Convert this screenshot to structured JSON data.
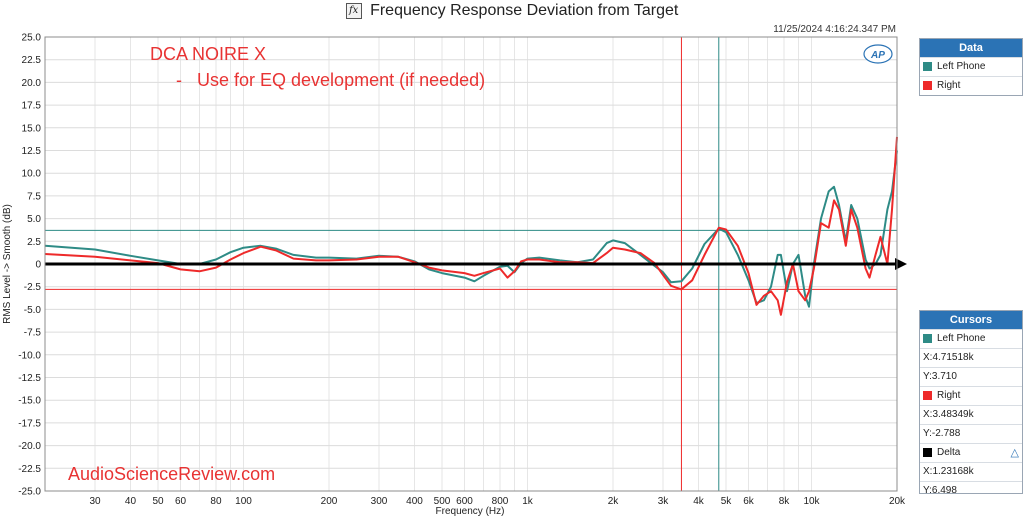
{
  "header": {
    "title": "Frequency Response Deviation from Target",
    "icon": "fx",
    "timestamp": "11/25/2024 4:16:24.347 PM"
  },
  "annotations": {
    "product": "DCA NOIRE X",
    "note": "-   Use for EQ development (if needed)",
    "watermark": "AudioScienceReview.com",
    "logo": "AP"
  },
  "data_panel": {
    "title": "Data",
    "items": [
      {
        "label": "Left Phone",
        "color": "#2e8b86"
      },
      {
        "label": "Right",
        "color": "#ee2a2a"
      }
    ]
  },
  "cursors_panel": {
    "title": "Cursors",
    "groups": [
      {
        "label": "Left Phone",
        "color": "#2e8b86",
        "x": "X:4.71518k",
        "y": "Y:3.710"
      },
      {
        "label": "Right",
        "color": "#ee2a2a",
        "x": "X:3.48349k",
        "y": "Y:-2.788"
      },
      {
        "label": "Delta",
        "color": "#000000",
        "x": "X:1.23168k",
        "y": "Y:6.498"
      }
    ]
  },
  "chart_data": {
    "type": "line",
    "xlabel": "Frequency (Hz)",
    "ylabel": "RMS Level -> Smooth (dB)",
    "xscale": "log",
    "xlim": [
      20,
      20000
    ],
    "ylim": [
      -25,
      25
    ],
    "grid": true,
    "legend": "right panel",
    "x_ticks": [
      {
        "v": 30,
        "label": "30"
      },
      {
        "v": 40,
        "label": "40"
      },
      {
        "v": 50,
        "label": "50"
      },
      {
        "v": 60,
        "label": "60"
      },
      {
        "v": 80,
        "label": "80"
      },
      {
        "v": 100,
        "label": "100"
      },
      {
        "v": 200,
        "label": "200"
      },
      {
        "v": 300,
        "label": "300"
      },
      {
        "v": 400,
        "label": "400"
      },
      {
        "v": 500,
        "label": "500"
      },
      {
        "v": 600,
        "label": "600"
      },
      {
        "v": 800,
        "label": "800"
      },
      {
        "v": 1000,
        "label": "1k"
      },
      {
        "v": 2000,
        "label": "2k"
      },
      {
        "v": 3000,
        "label": "3k"
      },
      {
        "v": 4000,
        "label": "4k"
      },
      {
        "v": 5000,
        "label": "5k"
      },
      {
        "v": 6000,
        "label": "6k"
      },
      {
        "v": 8000,
        "label": "8k"
      },
      {
        "v": 10000,
        "label": "10k"
      },
      {
        "v": 20000,
        "label": "20k"
      }
    ],
    "y_ticks": [
      {
        "v": 25,
        "label": "25.0"
      },
      {
        "v": 22.5,
        "label": "22.5"
      },
      {
        "v": 20,
        "label": "20.0"
      },
      {
        "v": 17.5,
        "label": "17.5"
      },
      {
        "v": 15,
        "label": "15.0"
      },
      {
        "v": 12.5,
        "label": "12.5"
      },
      {
        "v": 10,
        "label": "10.0"
      },
      {
        "v": 7.5,
        "label": "7.5"
      },
      {
        "v": 5,
        "label": "5.0"
      },
      {
        "v": 2.5,
        "label": "2.5"
      },
      {
        "v": 0,
        "label": "0"
      },
      {
        "v": -2.5,
        "label": "-2.5"
      },
      {
        "v": -5,
        "label": "-5.0"
      },
      {
        "v": -7.5,
        "label": "-7.5"
      },
      {
        "v": -10,
        "label": "-10.0"
      },
      {
        "v": -12.5,
        "label": "-12.5"
      },
      {
        "v": -15,
        "label": "-15.0"
      },
      {
        "v": -17.5,
        "label": "-17.5"
      },
      {
        "v": -20,
        "label": "-20.0"
      },
      {
        "v": -22.5,
        "label": "-22.5"
      },
      {
        "v": -25,
        "label": "-25.0"
      }
    ],
    "series": [
      {
        "name": "Left Phone",
        "color": "#2e8b86",
        "points": [
          [
            20,
            2.0
          ],
          [
            30,
            1.6
          ],
          [
            40,
            0.9
          ],
          [
            50,
            0.4
          ],
          [
            60,
            0.0
          ],
          [
            70,
            0.0
          ],
          [
            80,
            0.5
          ],
          [
            90,
            1.3
          ],
          [
            100,
            1.8
          ],
          [
            115,
            2.0
          ],
          [
            130,
            1.7
          ],
          [
            150,
            1.0
          ],
          [
            180,
            0.7
          ],
          [
            200,
            0.7
          ],
          [
            250,
            0.6
          ],
          [
            300,
            0.9
          ],
          [
            350,
            0.8
          ],
          [
            400,
            0.3
          ],
          [
            450,
            -0.6
          ],
          [
            500,
            -1.0
          ],
          [
            600,
            -1.5
          ],
          [
            650,
            -1.9
          ],
          [
            700,
            -1.3
          ],
          [
            800,
            -0.3
          ],
          [
            850,
            -0.2
          ],
          [
            900,
            -0.9
          ],
          [
            950,
            0.1
          ],
          [
            1000,
            0.6
          ],
          [
            1100,
            0.7
          ],
          [
            1300,
            0.4
          ],
          [
            1500,
            0.2
          ],
          [
            1700,
            0.5
          ],
          [
            1900,
            2.3
          ],
          [
            2000,
            2.6
          ],
          [
            2200,
            2.3
          ],
          [
            2500,
            1.0
          ],
          [
            2800,
            -0.2
          ],
          [
            3000,
            -0.9
          ],
          [
            3200,
            -2.0
          ],
          [
            3483,
            -1.9
          ],
          [
            3800,
            -0.5
          ],
          [
            4200,
            2.2
          ],
          [
            4715,
            3.9
          ],
          [
            5000,
            3.5
          ],
          [
            5500,
            1.0
          ],
          [
            6000,
            -1.8
          ],
          [
            6400,
            -4.3
          ],
          [
            6800,
            -4.0
          ],
          [
            7200,
            -2.5
          ],
          [
            7600,
            1.0
          ],
          [
            7800,
            1.0
          ],
          [
            8200,
            -3.0
          ],
          [
            8600,
            0.0
          ],
          [
            9000,
            1.0
          ],
          [
            9500,
            -3.5
          ],
          [
            9800,
            -4.7
          ],
          [
            10200,
            0.0
          ],
          [
            10800,
            5.0
          ],
          [
            11500,
            8.0
          ],
          [
            12000,
            8.5
          ],
          [
            12500,
            6.5
          ],
          [
            13200,
            2.5
          ],
          [
            13800,
            6.5
          ],
          [
            14500,
            5.0
          ],
          [
            15500,
            0.5
          ],
          [
            16000,
            -0.5
          ],
          [
            16800,
            0.0
          ],
          [
            17500,
            1.0
          ],
          [
            18500,
            6.0
          ],
          [
            19200,
            8.0
          ],
          [
            20000,
            12.5
          ]
        ]
      },
      {
        "name": "Right",
        "color": "#ee2a2a",
        "points": [
          [
            20,
            1.1
          ],
          [
            30,
            0.8
          ],
          [
            40,
            0.4
          ],
          [
            50,
            0.1
          ],
          [
            60,
            -0.6
          ],
          [
            70,
            -0.8
          ],
          [
            80,
            -0.4
          ],
          [
            90,
            0.5
          ],
          [
            100,
            1.2
          ],
          [
            115,
            1.9
          ],
          [
            130,
            1.5
          ],
          [
            150,
            0.6
          ],
          [
            180,
            0.4
          ],
          [
            200,
            0.4
          ],
          [
            250,
            0.5
          ],
          [
            300,
            0.8
          ],
          [
            350,
            0.8
          ],
          [
            400,
            0.2
          ],
          [
            450,
            -0.4
          ],
          [
            500,
            -0.7
          ],
          [
            600,
            -1.0
          ],
          [
            650,
            -1.3
          ],
          [
            700,
            -1.0
          ],
          [
            800,
            -0.5
          ],
          [
            850,
            -1.5
          ],
          [
            900,
            -0.8
          ],
          [
            950,
            0.3
          ],
          [
            1000,
            0.5
          ],
          [
            1100,
            0.5
          ],
          [
            1300,
            0.2
          ],
          [
            1500,
            0.2
          ],
          [
            1700,
            0.1
          ],
          [
            1900,
            1.2
          ],
          [
            2000,
            1.8
          ],
          [
            2200,
            1.6
          ],
          [
            2500,
            1.2
          ],
          [
            2800,
            0.1
          ],
          [
            3000,
            -1.2
          ],
          [
            3200,
            -2.4
          ],
          [
            3483,
            -2.8
          ],
          [
            3800,
            -1.8
          ],
          [
            4200,
            1.0
          ],
          [
            4715,
            4.0
          ],
          [
            5000,
            3.8
          ],
          [
            5500,
            2.0
          ],
          [
            6000,
            -1.0
          ],
          [
            6400,
            -4.5
          ],
          [
            6800,
            -3.5
          ],
          [
            7200,
            -3.0
          ],
          [
            7600,
            -4.0
          ],
          [
            7800,
            -5.6
          ],
          [
            8200,
            -2.0
          ],
          [
            8600,
            0.0
          ],
          [
            9000,
            -3.0
          ],
          [
            9500,
            -4.0
          ],
          [
            9800,
            -3.0
          ],
          [
            10200,
            -0.5
          ],
          [
            10800,
            4.5
          ],
          [
            11500,
            4.0
          ],
          [
            12000,
            7.0
          ],
          [
            12500,
            6.0
          ],
          [
            13200,
            2.0
          ],
          [
            13800,
            6.0
          ],
          [
            14500,
            4.0
          ],
          [
            15500,
            -0.5
          ],
          [
            16000,
            -1.5
          ],
          [
            16800,
            1.0
          ],
          [
            17500,
            3.0
          ],
          [
            18500,
            0.0
          ],
          [
            19200,
            6.0
          ],
          [
            20000,
            14.0
          ]
        ]
      }
    ],
    "cursors": {
      "vertical": [
        {
          "x": 4715.18,
          "color": "#2e8b86"
        },
        {
          "x": 3483.49,
          "color": "#ee2a2a"
        }
      ],
      "horizontal": [
        {
          "y": 3.71,
          "color": "#2e8b86"
        },
        {
          "y": -2.788,
          "color": "#ee2a2a"
        }
      ]
    },
    "zero_arrow": {
      "y": 0,
      "color": "#000000"
    }
  }
}
